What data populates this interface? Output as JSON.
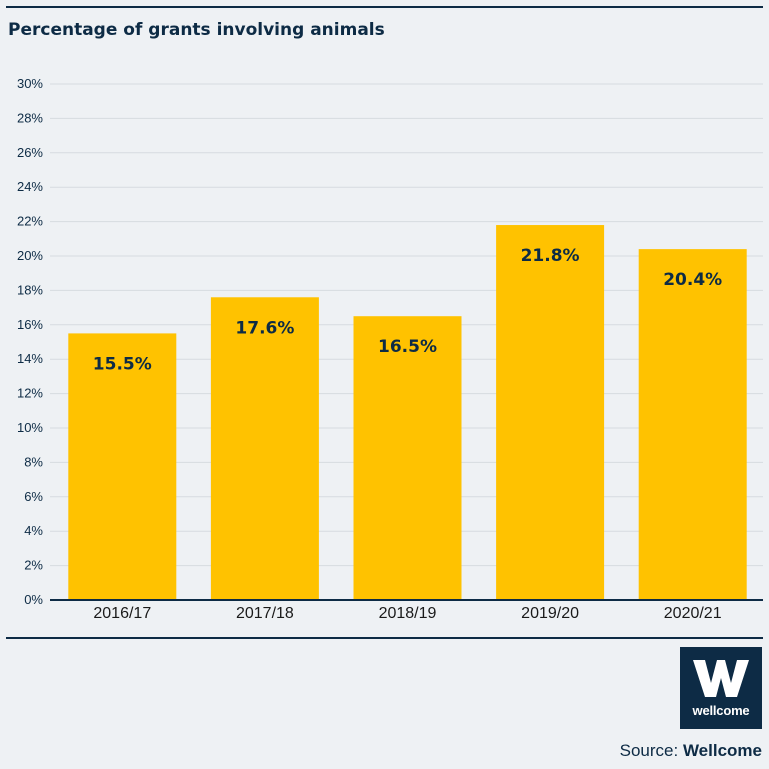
{
  "title": "Percentage of grants involving animals",
  "chart_data": {
    "type": "bar",
    "title": "Percentage of grants involving animals",
    "categories": [
      "2016/17",
      "2017/18",
      "2018/19",
      "2019/20",
      "2020/21"
    ],
    "values": [
      15.5,
      17.6,
      16.5,
      21.8,
      20.4
    ],
    "data_labels": [
      "15.5%",
      "17.6%",
      "16.5%",
      "21.8%",
      "20.4%"
    ],
    "xlabel": "",
    "ylabel": "",
    "ylim": [
      0,
      30
    ],
    "y_ticks": [
      0,
      2,
      4,
      6,
      8,
      10,
      12,
      14,
      16,
      18,
      20,
      22,
      24,
      26,
      28,
      30
    ],
    "y_tick_labels": [
      "0%",
      "2%",
      "4%",
      "6%",
      "8%",
      "10%",
      "12%",
      "14%",
      "16%",
      "18%",
      "20%",
      "22%",
      "24%",
      "26%",
      "28%",
      "30%"
    ],
    "grid": true,
    "bar_color": "#ffc200"
  },
  "logo": {
    "text": "wellcome"
  },
  "source": {
    "prefix": "Source: ",
    "name": "Wellcome"
  },
  "colors": {
    "navy": "#0d2b45",
    "background": "#eef1f4",
    "bar": "#ffc200",
    "grid": "#d6dbe0"
  }
}
